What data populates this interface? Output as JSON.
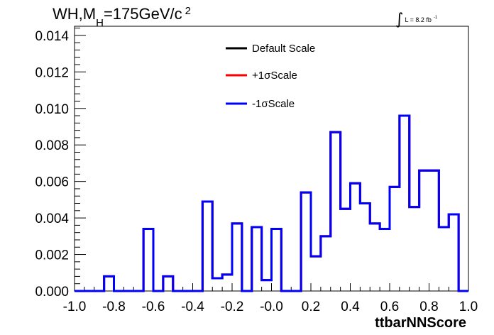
{
  "title": {
    "prefix": "WH,M",
    "subscript": "H",
    "value": "=175GeV/c",
    "superscript": "2"
  },
  "lumi": {
    "integral": "∫",
    "text": "L = 8.2 fb",
    "superscript": "-1"
  },
  "colors": {
    "default": "#000000",
    "plus": "#ff0000",
    "minus": "#0000ff"
  },
  "chart_data": {
    "type": "histogram",
    "xlabel": "ttbarNNScore",
    "ylabel": "",
    "xlim": [
      -1.0,
      1.0
    ],
    "ylim": [
      0.0,
      0.0145
    ],
    "x_ticks": [
      -1.0,
      -0.8,
      -0.6,
      -0.4,
      -0.2,
      0.0,
      0.2,
      0.4,
      0.6,
      0.8,
      1.0
    ],
    "x_tick_labels": [
      "-1.0",
      "-0.8",
      "-0.6",
      "-0.4",
      "-0.2",
      "-0.0",
      "0.2",
      "0.4",
      "0.6",
      "0.8",
      "1.0"
    ],
    "y_ticks": [
      0.0,
      0.002,
      0.004,
      0.006,
      0.008,
      0.01,
      0.012,
      0.014
    ],
    "y_tick_labels": [
      "0.000",
      "0.002",
      "0.004",
      "0.006",
      "0.008",
      "0.010",
      "0.012",
      "0.014"
    ],
    "bin_edges": [
      -1.0,
      -0.95,
      -0.9,
      -0.85,
      -0.8,
      -0.75,
      -0.7,
      -0.65,
      -0.6,
      -0.55,
      -0.5,
      -0.45,
      -0.4,
      -0.35,
      -0.3,
      -0.25,
      -0.2,
      -0.15,
      -0.1,
      -0.05,
      0.0,
      0.05,
      0.1,
      0.15,
      0.2,
      0.25,
      0.3,
      0.35,
      0.4,
      0.45,
      0.5,
      0.55,
      0.6,
      0.65,
      0.7,
      0.75,
      0.8,
      0.85,
      0.9,
      0.95,
      1.0
    ],
    "legend_position": "top-center",
    "series": [
      {
        "name": "Default Scale",
        "color": "#000000",
        "values": [
          0,
          0,
          0,
          0.0008,
          0,
          0,
          0,
          0.0034,
          0,
          0.0008,
          0,
          0,
          0,
          0.0049,
          0.0007,
          0.0009,
          0.0037,
          0,
          0.0035,
          0.0006,
          0.0034,
          0,
          0,
          0.0054,
          0.0019,
          0.003,
          0.0087,
          0.0045,
          0.0059,
          0.0048,
          0.0037,
          0.0034,
          0.0057,
          0.0096,
          0.0046,
          0.0066,
          0.0066,
          0.0035,
          0.0042,
          0
        ]
      },
      {
        "name": "+1σScale",
        "color": "#ff0000",
        "values": [
          0,
          0,
          0,
          0.0008,
          0,
          0,
          0,
          0.0034,
          0,
          0.0008,
          0,
          0,
          0,
          0.0049,
          0.0007,
          0.0009,
          0.0037,
          0,
          0.0035,
          0.0006,
          0.0034,
          0,
          0,
          0.0054,
          0.0019,
          0.003,
          0.0087,
          0.0045,
          0.0059,
          0.0048,
          0.0037,
          0.0034,
          0.0057,
          0.0096,
          0.0046,
          0.0066,
          0.0066,
          0.0035,
          0.0042,
          0
        ]
      },
      {
        "name": "-1σScale",
        "color": "#0000ff",
        "values": [
          0,
          0,
          0,
          0.0008,
          0,
          0,
          0,
          0.0034,
          0,
          0.0008,
          0,
          0,
          0,
          0.0049,
          0.0007,
          0.0009,
          0.0037,
          0,
          0.0035,
          0.0006,
          0.0034,
          0,
          0,
          0.0054,
          0.0019,
          0.003,
          0.0087,
          0.0045,
          0.0059,
          0.0048,
          0.0037,
          0.0034,
          0.0057,
          0.0096,
          0.0046,
          0.0066,
          0.0066,
          0.0035,
          0.0042,
          0
        ]
      }
    ]
  }
}
